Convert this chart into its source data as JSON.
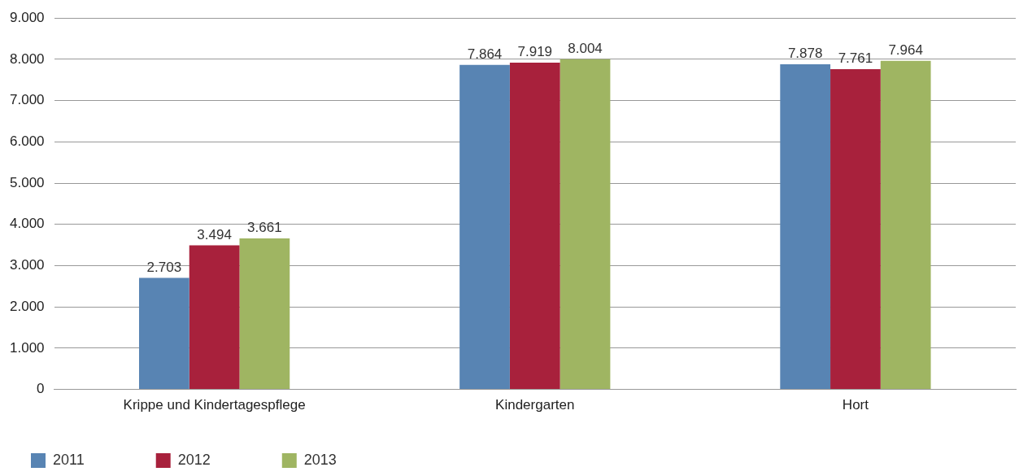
{
  "chart_data": {
    "type": "bar",
    "categories": [
      "Krippe und Kindertagespflege",
      "Kindergarten",
      "Hort"
    ],
    "series": [
      {
        "name": "2011",
        "color": "#5884b3",
        "values": [
          2703,
          7864,
          7878
        ],
        "value_labels": [
          "2.703",
          "7.864",
          "7.878"
        ]
      },
      {
        "name": "2012",
        "color": "#a8213c",
        "values": [
          3494,
          7919,
          7761
        ],
        "value_labels": [
          "3.494",
          "7.919",
          "7.761"
        ]
      },
      {
        "name": "2013",
        "color": "#9fb562",
        "values": [
          3661,
          8004,
          7964
        ],
        "value_labels": [
          "3.661",
          "8.004",
          "7.964"
        ]
      }
    ],
    "ylim": [
      0,
      9000
    ],
    "yticks": [
      {
        "value": 0,
        "label": "0"
      },
      {
        "value": 1000,
        "label": "1.000"
      },
      {
        "value": 2000,
        "label": "2.000"
      },
      {
        "value": 3000,
        "label": "3.000"
      },
      {
        "value": 4000,
        "label": "4.000"
      },
      {
        "value": 5000,
        "label": "5.000"
      },
      {
        "value": 6000,
        "label": "6.000"
      },
      {
        "value": 7000,
        "label": "7.000"
      },
      {
        "value": 8000,
        "label": "8.000"
      },
      {
        "value": 9000,
        "label": "9.000"
      }
    ],
    "grid": "y",
    "legend": "bottom left"
  }
}
